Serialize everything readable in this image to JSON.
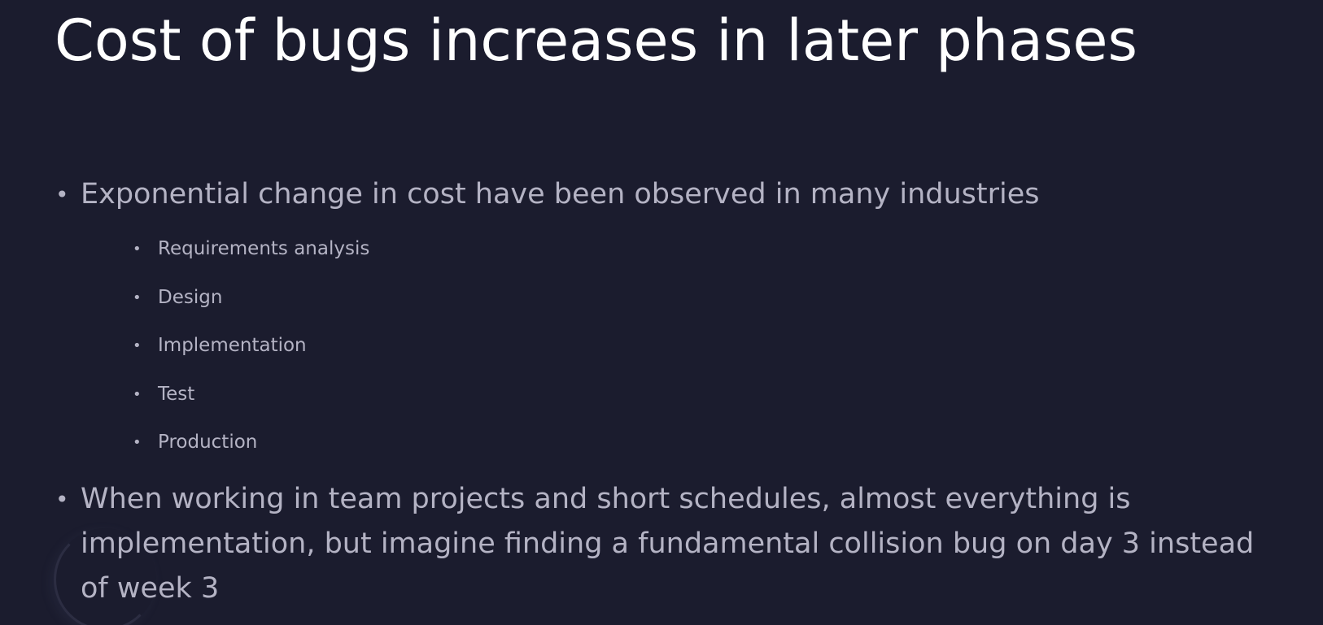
{
  "slide": {
    "title": "Cost of bugs increases in later phases",
    "bullets": [
      {
        "text": "Exponential change in cost have been observed in many industries",
        "subitems": [
          "Requirements analysis",
          "Design",
          "Implementation",
          "Test",
          "Production"
        ]
      },
      {
        "text": "When working in team projects and short schedules, almost everything is implementation, but imagine finding a fundamental collision bug on day 3 instead of week 3"
      }
    ],
    "bullet_glyph": "•"
  },
  "colors": {
    "background": "#1b1c2e",
    "title": "#ffffff",
    "body_text": "#b4b3c4"
  },
  "icons": {
    "loading": "loading-spinner-icon"
  }
}
